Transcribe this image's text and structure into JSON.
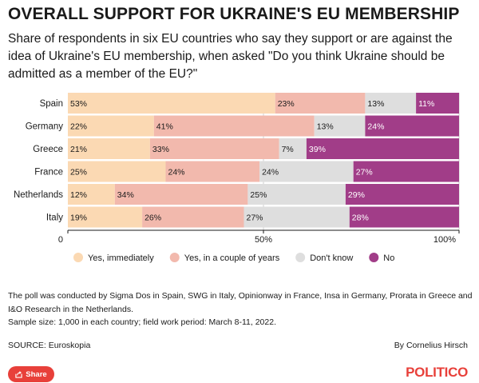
{
  "header": {
    "title": "OVERALL SUPPORT FOR UKRAINE'S EU MEMBERSHIP",
    "subtitle": "Share of respondents in six EU countries who say they support or are against the idea of Ukraine's EU membership, when asked \"Do you think Ukraine should be admitted as a member of the EU?\""
  },
  "chart_data": {
    "type": "bar",
    "orientation": "horizontal",
    "stacked": true,
    "categories": [
      "Spain",
      "Germany",
      "Greece",
      "France",
      "Netherlands",
      "Italy"
    ],
    "series": [
      {
        "name": "Yes, immediately",
        "color": "#fbd9b3",
        "values": [
          53,
          22,
          21,
          25,
          12,
          19
        ]
      },
      {
        "name": "Yes, in a couple of years",
        "color": "#f2b9ad",
        "values": [
          23,
          41,
          33,
          24,
          34,
          26
        ]
      },
      {
        "name": "Don't know",
        "color": "#dedede",
        "values": [
          13,
          13,
          7,
          24,
          25,
          27
        ]
      },
      {
        "name": "No",
        "color": "#a13d88",
        "values": [
          11,
          24,
          39,
          27,
          29,
          28
        ]
      }
    ],
    "data_labels": [
      [
        "53%",
        "23%",
        "13%",
        "11%"
      ],
      [
        "22%",
        "41%",
        "13%",
        "24%"
      ],
      [
        "21%",
        "33%",
        "7%",
        "39%"
      ],
      [
        "25%",
        "24%",
        "24%",
        "27%"
      ],
      [
        "12%",
        "34%",
        "25%",
        "29%"
      ],
      [
        "19%",
        "26%",
        "27%",
        "28%"
      ]
    ],
    "xlim": [
      0,
      100
    ],
    "x_ticks": [
      0,
      50,
      100
    ],
    "x_tick_labels": [
      "0",
      "50%",
      "100%"
    ],
    "legend_position": "bottom",
    "title": "OVERALL SUPPORT FOR UKRAINE'S EU MEMBERSHIP"
  },
  "footer": {
    "note": "The poll was conducted by Sigma Dos in Spain, SWG in Italy, Opinionway in France, Insa in Germany, Prorata in Greece and I&O Research in the Netherlands.",
    "sample": "Sample size: 1,000 in each country; field work period: March 8-11, 2022.",
    "source": "SOURCE: Euroskopia",
    "byline": "By Cornelius Hirsch",
    "share_label": "Share",
    "brand": "POLITICO"
  }
}
